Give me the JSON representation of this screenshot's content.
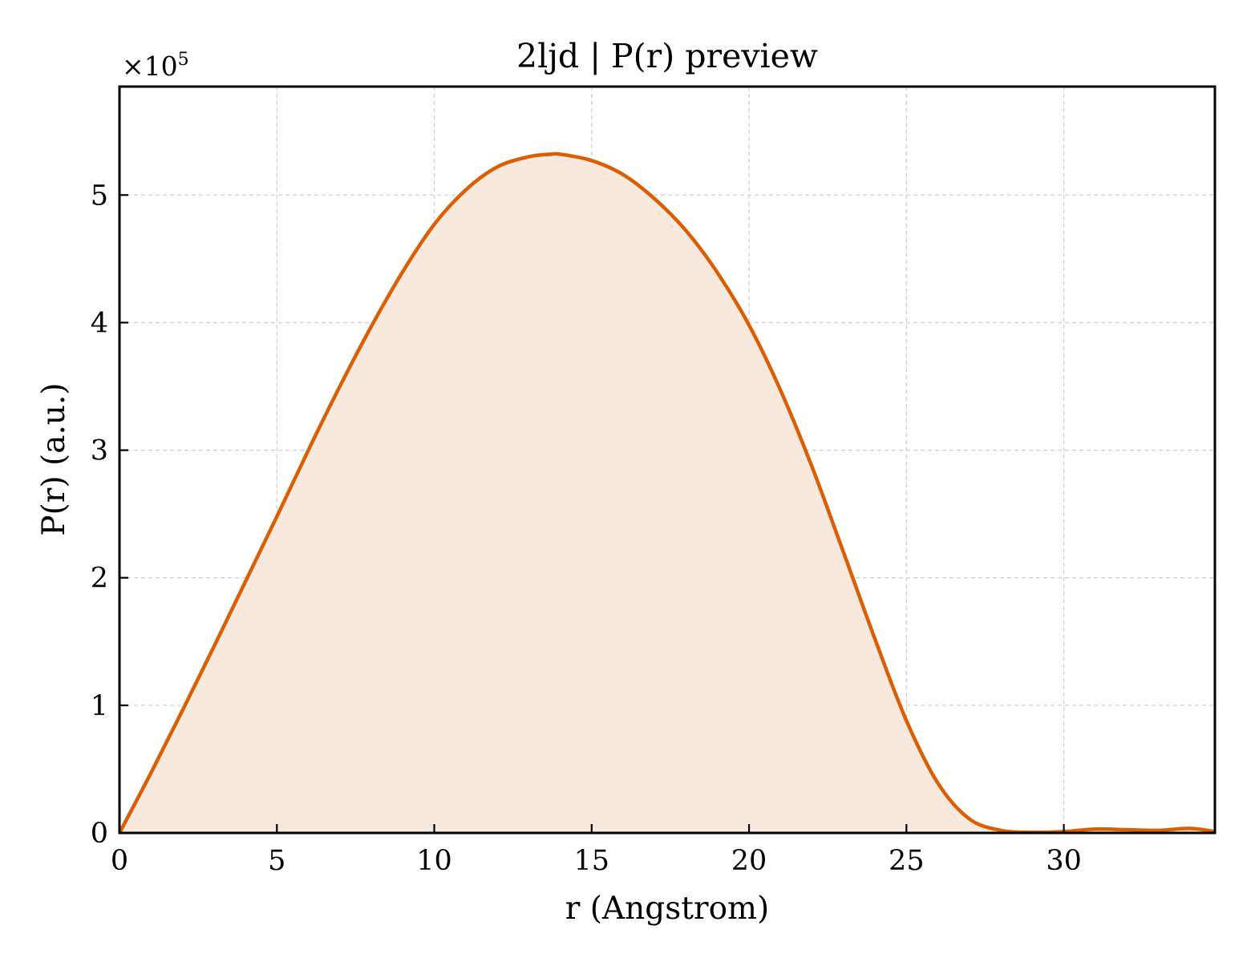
{
  "chart_data": {
    "type": "line",
    "title": "2ljd | P(r) preview",
    "xlabel": "r (Angstrom)",
    "ylabel": "P(r) (a.u.)",
    "y_offset_text": "×10",
    "y_offset_exponent": "5",
    "xlim": [
      0,
      34.8
    ],
    "ylim": [
      0,
      5.85
    ],
    "y_scale_factor": 100000,
    "xticks": [
      0,
      5,
      10,
      15,
      20,
      25,
      30
    ],
    "yticks": [
      0,
      1,
      2,
      3,
      4,
      5
    ],
    "grid": true,
    "legend": "none",
    "fill_under_curve": true,
    "line_color": "#D95F02",
    "fill_color": "#F8E9DE",
    "series": [
      {
        "x": [
          0,
          1,
          2,
          3,
          4,
          5,
          6,
          7,
          8,
          9,
          10,
          11,
          12,
          13,
          13.7,
          14,
          15,
          16,
          17,
          18,
          19,
          20,
          21,
          22,
          23,
          24,
          25,
          26,
          27,
          28,
          29,
          30,
          31,
          32,
          33,
          34,
          34.8
        ],
        "values": [
          0,
          0.47,
          0.96,
          1.46,
          1.97,
          2.48,
          3.0,
          3.5,
          3.97,
          4.4,
          4.77,
          5.04,
          5.22,
          5.3,
          5.32,
          5.32,
          5.27,
          5.16,
          4.97,
          4.72,
          4.39,
          3.98,
          3.47,
          2.87,
          2.2,
          1.52,
          0.88,
          0.39,
          0.11,
          0.02,
          0.005,
          0.01,
          0.03,
          0.025,
          0.02,
          0.035,
          0.01
        ]
      }
    ]
  }
}
